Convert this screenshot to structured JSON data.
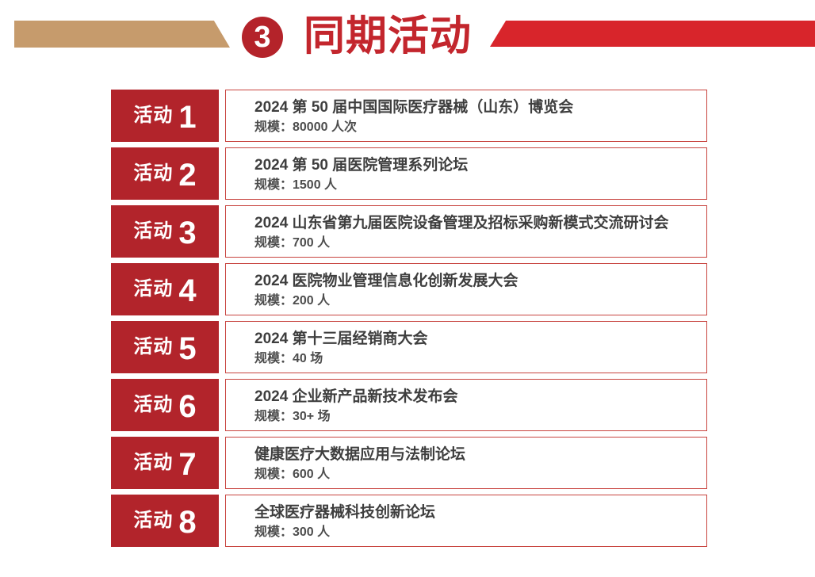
{
  "header": {
    "badge_number": "3",
    "title": "同期活动"
  },
  "colors": {
    "label_red": "#B2242B",
    "banner_red": "#D8252B",
    "title_red": "#C3262D",
    "badge_red": "#B4232A",
    "tan_banner": "#C69B6C",
    "box_border_red": "#C8443F"
  },
  "activities": [
    {
      "label": "活动",
      "number": "1",
      "title": "2024 第 50 届中国国际医疗器械（山东）博览会",
      "scale": "规模：80000 人次"
    },
    {
      "label": "活动",
      "number": "2",
      "title": "2024 第 50 届医院管理系列论坛",
      "scale": "规模：1500 人"
    },
    {
      "label": "活动",
      "number": "3",
      "title": "2024 山东省第九届医院设备管理及招标采购新模式交流研讨会",
      "scale": "规模：700 人"
    },
    {
      "label": "活动",
      "number": "4",
      "title": "2024 医院物业管理信息化创新发展大会",
      "scale": "规模：200 人"
    },
    {
      "label": "活动",
      "number": "5",
      "title": "2024 第十三届经销商大会",
      "scale": "规模：40 场"
    },
    {
      "label": "活动",
      "number": "6",
      "title": "2024 企业新产品新技术发布会",
      "scale": "规模：30+ 场"
    },
    {
      "label": "活动",
      "number": "7",
      "title": "健康医疗大数据应用与法制论坛",
      "scale": "规模：600 人"
    },
    {
      "label": "活动",
      "number": "8",
      "title": "全球医疗器械科技创新论坛",
      "scale": "规模：300 人"
    }
  ]
}
